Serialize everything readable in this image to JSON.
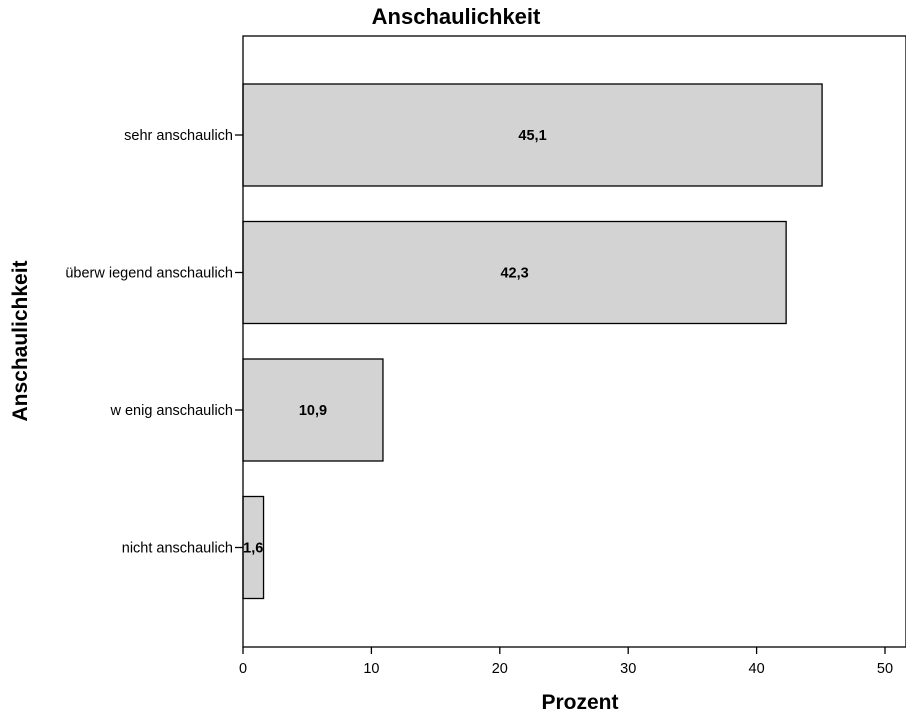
{
  "chart_data": {
    "type": "bar",
    "orientation": "horizontal",
    "title": "Anschaulichkeit",
    "xlabel": "Prozent",
    "ylabel": "Anschaulichkeit",
    "categories": [
      "sehr anschaulich",
      "überw iegend anschaulich",
      "w enig anschaulich",
      "nicht anschaulich"
    ],
    "values": [
      45.1,
      42.3,
      10.9,
      1.6
    ],
    "value_labels": [
      "45,1",
      "42,3",
      "10,9",
      "1,6"
    ],
    "xlim": [
      0,
      51.5
    ],
    "xticks": [
      0,
      10,
      20,
      30,
      40,
      50
    ],
    "xtick_labels": [
      "0",
      "10",
      "20",
      "30",
      "40",
      "50"
    ],
    "grid": false,
    "legend": "none",
    "colors": {
      "bar_fill": "#d3d3d3",
      "bar_stroke": "#000000",
      "background": "#ffffff"
    }
  }
}
